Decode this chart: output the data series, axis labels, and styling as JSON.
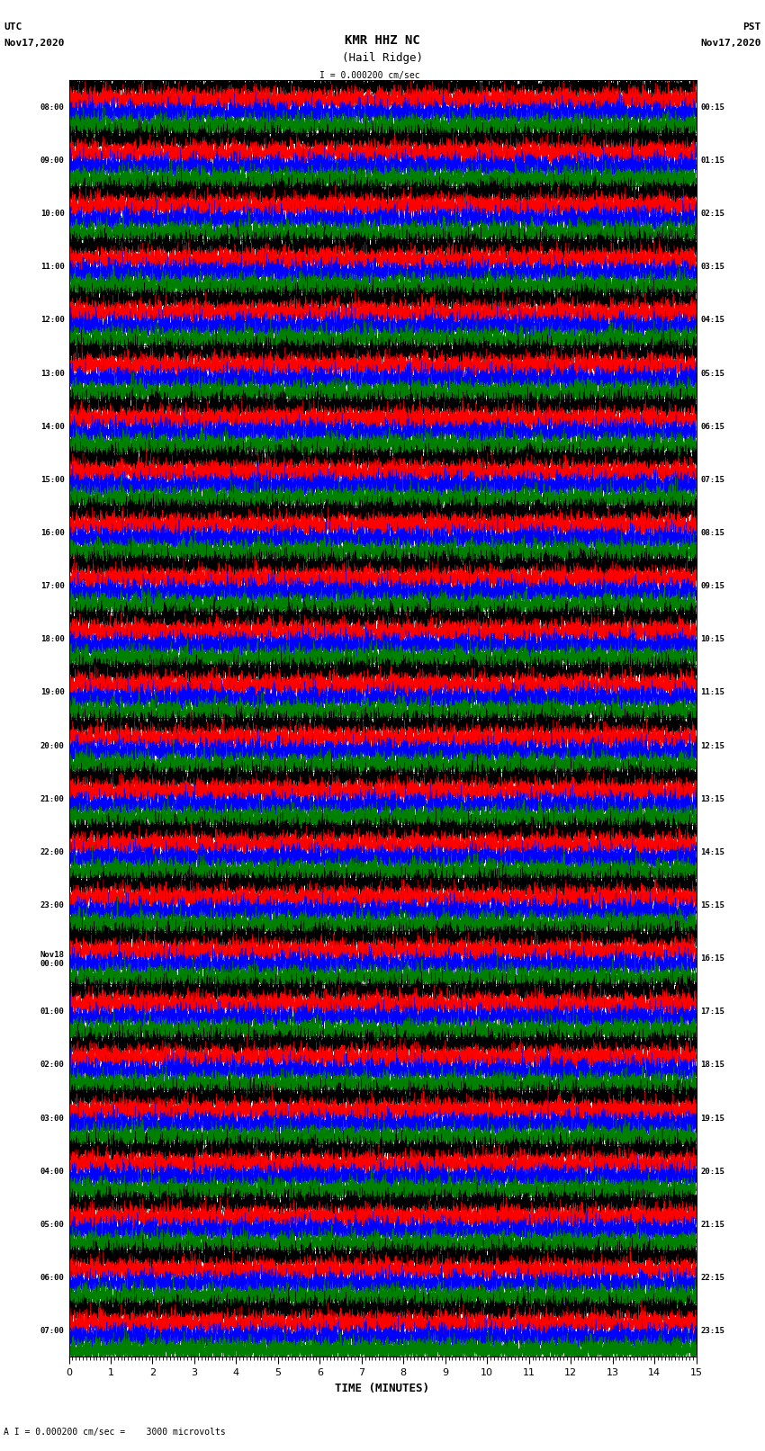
{
  "title_line1": "KMR HHZ NC",
  "title_line2": "(Hail Ridge)",
  "scale_bar": "I = 0.000200 cm/sec",
  "left_header": "UTC",
  "left_date": "Nov17,2020",
  "right_header": "PST",
  "right_date": "Nov17,2020",
  "scale_note": "A I = 0.000200 cm/sec =    3000 microvolts",
  "xlabel": "TIME (MINUTES)",
  "xmin": 0,
  "xmax": 15,
  "xticks": [
    0,
    1,
    2,
    3,
    4,
    5,
    6,
    7,
    8,
    9,
    10,
    11,
    12,
    13,
    14,
    15
  ],
  "left_times": [
    "08:00",
    "09:00",
    "10:00",
    "11:00",
    "12:00",
    "13:00",
    "14:00",
    "15:00",
    "16:00",
    "17:00",
    "18:00",
    "19:00",
    "20:00",
    "21:00",
    "22:00",
    "23:00",
    "Nov18\n00:00",
    "01:00",
    "02:00",
    "03:00",
    "04:00",
    "05:00",
    "06:00",
    "07:00"
  ],
  "right_times": [
    "00:15",
    "01:15",
    "02:15",
    "03:15",
    "04:15",
    "05:15",
    "06:15",
    "07:15",
    "08:15",
    "09:15",
    "10:15",
    "11:15",
    "12:15",
    "13:15",
    "14:15",
    "15:15",
    "16:15",
    "17:15",
    "18:15",
    "19:15",
    "20:15",
    "21:15",
    "22:15",
    "23:15"
  ],
  "n_rows": 24,
  "traces_per_row": 4,
  "colors": [
    "black",
    "red",
    "blue",
    "green"
  ],
  "bg_color": "white",
  "fig_width": 8.5,
  "fig_height": 16.13,
  "dpi": 100
}
